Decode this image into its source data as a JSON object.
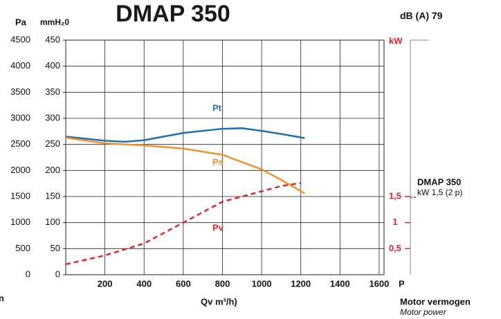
{
  "chart_data": {
    "type": "line",
    "title": "DMAP 350",
    "subtitle": "dB (A) 79",
    "y_label": "Pa",
    "ymm_label": "mmH₂0",
    "y2_label": "kW",
    "x_label": "Qv m³/h)",
    "x_end_label": "P",
    "annotations": [
      "DMAP 350",
      "kW 1,5 (2 p)",
      "Motor vermogen",
      "Motor power",
      "n"
    ],
    "xlim": [
      0,
      1625
    ],
    "xticks": [
      200,
      400,
      600,
      800,
      1000,
      1200,
      1400,
      1600
    ],
    "ylim": [
      0,
      4500
    ],
    "yticks": [
      0,
      500,
      1000,
      1500,
      2000,
      2500,
      3000,
      3500,
      4000,
      4500
    ],
    "ymmlim": [
      0,
      450
    ],
    "ymmticks": [
      0,
      50,
      100,
      150,
      200,
      250,
      300,
      350,
      400,
      450
    ],
    "y2lim": [
      0,
      4.5
    ],
    "y2ticks": [
      {
        "value": 0.5,
        "label": "0,5"
      },
      1,
      {
        "value": 1.5,
        "label": "1,5"
      }
    ],
    "grid": true,
    "series": [
      {
        "name": "Pt",
        "color": "#1f6fad",
        "dashed": false,
        "x": [
          0,
          200,
          300,
          400,
          600,
          800,
          900,
          1000,
          1100,
          1220
        ],
        "values": [
          2650,
          2570,
          2550,
          2580,
          2720,
          2800,
          2810,
          2760,
          2700,
          2620
        ]
      },
      {
        "name": "Ps",
        "color": "#f0922a",
        "dashed": false,
        "x": [
          0,
          200,
          400,
          600,
          800,
          1000,
          1100,
          1220
        ],
        "values": [
          2630,
          2520,
          2480,
          2420,
          2300,
          2020,
          1820,
          1560
        ]
      },
      {
        "name": "Pv",
        "color": "#e0262b",
        "dashed": true,
        "x": [
          0,
          200,
          400,
          600,
          800,
          1000,
          1100,
          1200
        ],
        "values": [
          200,
          370,
          600,
          1000,
          1400,
          1600,
          1700,
          1760
        ]
      }
    ]
  }
}
